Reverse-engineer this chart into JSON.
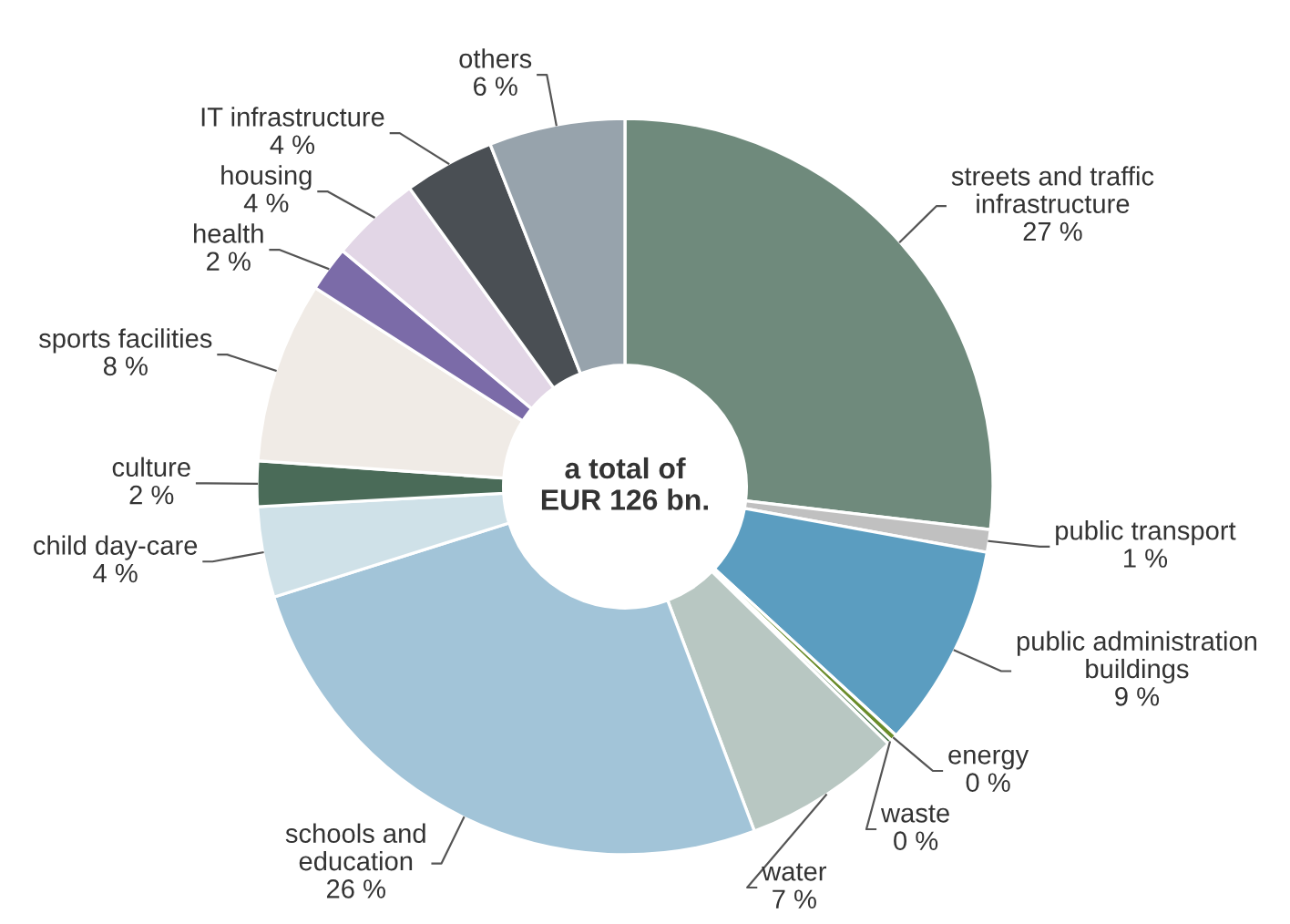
{
  "chart_data": {
    "type": "donut",
    "categories": [
      "streets and traffic\ninfrastructure",
      "public transport",
      "public administration\nbuildings",
      "energy",
      "waste",
      "water",
      "schools and\neducation",
      "child day-care",
      "culture",
      "sports facilities",
      "health",
      "housing",
      "IT infrastructure",
      "others"
    ],
    "values": [
      27,
      1,
      9,
      0.3,
      0.2,
      7,
      26,
      4,
      2,
      8,
      2,
      4,
      4,
      6
    ],
    "value_labels": [
      "27 %",
      "1 %",
      "9 %",
      "0 %",
      "0 %",
      "7 %",
      "26 %",
      "4 %",
      "2 %",
      "8 %",
      "2 %",
      "4 %",
      "4 %",
      "6 %"
    ],
    "colors": [
      "#6f8a7c",
      "#c0c0c0",
      "#5b9dc0",
      "#6a8c2a",
      "#3f6e40",
      "#b8c7c2",
      "#a2c4d8",
      "#cfe1e8",
      "#4a6b58",
      "#f0ebe6",
      "#7b6ba8",
      "#e2d6e6",
      "#4a4f54",
      "#97a3ac"
    ],
    "annotations": [
      "a total of\nEUR 126 bn."
    ]
  }
}
